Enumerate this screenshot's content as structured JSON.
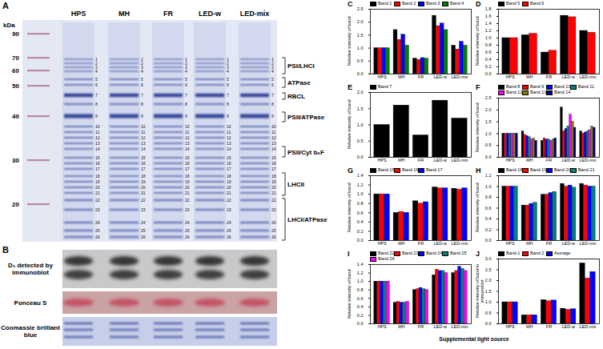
{
  "gel_figure": {
    "panel": "A",
    "unit": "kDa",
    "lanes": [
      "HPS",
      "MH",
      "FR",
      "LED-w",
      "LED-mix"
    ],
    "markers": [
      90,
      70,
      60,
      50,
      40,
      30,
      20
    ],
    "band_numbers": [
      "1",
      "2",
      "3",
      "4",
      "5",
      "6",
      "7",
      "8",
      "9",
      "10",
      "11",
      "12",
      "13",
      "14",
      "15",
      "16",
      "17",
      "18",
      "19",
      "20",
      "21",
      "22",
      "23",
      "24",
      "25",
      "26"
    ],
    "groups": [
      "PSI/LHCI",
      "ATPase",
      "RBCL",
      "PSII/ATPase",
      "PSII/Cyt b₆F",
      "LHCII",
      "LHCI/ATPase"
    ]
  },
  "blot_figure": {
    "panel": "B",
    "rows": [
      "D₁ detected by immunoblot",
      "Ponceau S",
      "Coomassie brilliant blue"
    ]
  },
  "chart_data": [
    {
      "type": "bar",
      "title": "C",
      "categories": [
        "HPS",
        "MH",
        "FR",
        "LED-w",
        "LED-mix"
      ],
      "y_label": "Relative intensity of band",
      "ylim": [
        0,
        2.5
      ],
      "yticks": [
        {
          "value": 0,
          "label": "0.0"
        },
        0.5,
        {
          "value": 1,
          "label": "1.0"
        },
        1.5,
        {
          "value": 2,
          "label": "2.0"
        },
        2.5
      ],
      "series": [
        {
          "name": "Band 1",
          "color": "#000000",
          "values": [
            1.0,
            1.7,
            0.6,
            2.25,
            1.1
          ]
        },
        {
          "name": "Band 2",
          "color": "#ff0000",
          "values": [
            1.0,
            1.32,
            0.55,
            1.85,
            0.95
          ]
        },
        {
          "name": "Band 3",
          "color": "#0000ff",
          "values": [
            1.0,
            1.52,
            0.62,
            1.95,
            1.25
          ]
        },
        {
          "name": "Band 4",
          "color": "#008000",
          "values": [
            1.0,
            1.1,
            0.6,
            1.7,
            1.1
          ]
        }
      ]
    },
    {
      "type": "bar",
      "title": "D",
      "categories": [
        "HPS",
        "MH",
        "FR",
        "LED-w",
        "LED-mix"
      ],
      "y_label": "Relative intensity of band",
      "ylim": [
        0,
        1.8
      ],
      "yticks": [
        {
          "value": 0,
          "label": "0.0"
        },
        0.2,
        0.4,
        0.6,
        0.8,
        {
          "value": 1,
          "label": "1.0"
        },
        1.2,
        1.4,
        1.6,
        1.8
      ],
      "series": [
        {
          "name": "Band 5",
          "color": "#000000",
          "values": [
            1.0,
            1.08,
            0.6,
            1.62,
            1.2
          ]
        },
        {
          "name": "Band 6",
          "color": "#ff0000",
          "values": [
            1.0,
            1.12,
            0.65,
            1.58,
            1.15
          ]
        }
      ]
    },
    {
      "type": "bar",
      "title": "E",
      "categories": [
        "HPS",
        "MH",
        "FR",
        "LED-w",
        "LED-mix"
      ],
      "y_label": "Relative intensity of band",
      "ylim": [
        0,
        2
      ],
      "yticks": [
        {
          "value": 0,
          "label": "0.0"
        },
        0.5,
        {
          "value": 1,
          "label": "1.0"
        },
        1.5,
        {
          "value": 2,
          "label": "2.0"
        }
      ],
      "series": [
        {
          "name": "Band 7",
          "color": "#000000",
          "values": [
            1.0,
            1.6,
            0.68,
            1.75,
            1.2
          ]
        }
      ]
    },
    {
      "type": "bar",
      "title": "F",
      "categories": [
        "HPS",
        "MH",
        "FR",
        "LED-w",
        "LED-mix"
      ],
      "y_label": "Relative intensity of band",
      "ylim": [
        0,
        2.5
      ],
      "yticks": [
        {
          "value": 0,
          "label": "0.0"
        },
        0.5,
        {
          "value": 1,
          "label": "1.0"
        },
        1.5,
        {
          "value": 2,
          "label": "2.0"
        },
        2.5
      ],
      "series": [
        {
          "name": "Band 8",
          "color": "#000000",
          "values": [
            1.0,
            1.1,
            0.7,
            2.1,
            1.1
          ]
        },
        {
          "name": "Band 9",
          "color": "#ff0000",
          "values": [
            1.0,
            0.95,
            0.8,
            1.1,
            1.0
          ]
        },
        {
          "name": "Band 10",
          "color": "#0000ff",
          "values": [
            1.0,
            0.9,
            0.75,
            1.2,
            1.05
          ]
        },
        {
          "name": "Band 11",
          "color": "#008080",
          "values": [
            1.0,
            0.85,
            0.75,
            1.3,
            1.1
          ]
        },
        {
          "name": "Band 12",
          "color": "#ff00ff",
          "values": [
            1.0,
            0.75,
            0.7,
            1.8,
            1.15
          ]
        },
        {
          "name": "Band 13",
          "color": "#808000",
          "values": [
            1.0,
            0.8,
            0.75,
            1.5,
            1.3
          ]
        },
        {
          "name": "Band 14",
          "color": "#000080",
          "values": [
            1.0,
            0.7,
            0.8,
            1.25,
            1.25
          ]
        }
      ]
    },
    {
      "type": "bar",
      "title": "G",
      "categories": [
        "HPS",
        "MH",
        "FR",
        "LED-w",
        "LED-mix"
      ],
      "y_label": "Relative intensity of band",
      "ylim": [
        0,
        1.4
      ],
      "yticks": [
        {
          "value": 0,
          "label": "0.0"
        },
        0.2,
        0.4,
        0.6,
        0.8,
        {
          "value": 1,
          "label": "1.0"
        },
        1.2,
        1.4
      ],
      "series": [
        {
          "name": "Band 15",
          "color": "#000000",
          "values": [
            1.0,
            0.6,
            0.85,
            1.15,
            1.12
          ]
        },
        {
          "name": "Band 16",
          "color": "#ff0000",
          "values": [
            1.0,
            0.62,
            0.8,
            1.13,
            1.1
          ]
        },
        {
          "name": "Band 17",
          "color": "#0000ff",
          "values": [
            1.0,
            0.6,
            0.83,
            1.13,
            1.13
          ]
        }
      ]
    },
    {
      "type": "bar",
      "title": "H",
      "categories": [
        "HPS",
        "MH",
        "FR",
        "LED-w",
        "LED-mix"
      ],
      "y_label": "Relative intensity of band",
      "ylim": [
        0,
        1.2
      ],
      "yticks": [
        {
          "value": 0,
          "label": "0.0"
        },
        0.2,
        0.4,
        0.6,
        0.8,
        {
          "value": 1,
          "label": "1.0"
        },
        1.2
      ],
      "series": [
        {
          "name": "Band 18",
          "color": "#000000",
          "values": [
            1.0,
            0.65,
            0.85,
            1.05,
            1.05
          ]
        },
        {
          "name": "Band 19",
          "color": "#ff0000",
          "values": [
            1.0,
            0.65,
            0.85,
            1.0,
            1.02
          ]
        },
        {
          "name": "Band 20",
          "color": "#0000ff",
          "values": [
            1.0,
            0.68,
            0.88,
            1.02,
            1.0
          ]
        },
        {
          "name": "Band 21",
          "color": "#008080",
          "values": [
            1.0,
            0.7,
            0.9,
            0.98,
            1.0
          ]
        }
      ]
    },
    {
      "type": "bar",
      "title": "I",
      "categories": [
        "HPS",
        "MH",
        "FR",
        "LED-w",
        "LED-mix"
      ],
      "y_label": "Relative intensity of band",
      "ylim": [
        0,
        1.4
      ],
      "yticks": [
        {
          "value": 0,
          "label": "0.0"
        },
        0.2,
        0.4,
        0.6,
        0.8,
        {
          "value": 1,
          "label": "1.0"
        },
        1.2,
        1.4
      ],
      "series": [
        {
          "name": "Band 22",
          "color": "#000000",
          "values": [
            1.0,
            0.5,
            0.8,
            1.15,
            1.2
          ]
        },
        {
          "name": "Band 23",
          "color": "#ff0000",
          "values": [
            1.0,
            0.52,
            0.82,
            1.28,
            1.25
          ]
        },
        {
          "name": "Band 24",
          "color": "#0000ff",
          "values": [
            1.0,
            0.5,
            0.85,
            1.25,
            1.35
          ]
        },
        {
          "name": "Band 25",
          "color": "#008080",
          "values": [
            1.0,
            0.5,
            0.82,
            1.25,
            1.3
          ]
        },
        {
          "name": "Band 26",
          "color": "#ff00ff",
          "values": [
            1.0,
            0.52,
            0.8,
            1.2,
            1.25
          ]
        }
      ]
    },
    {
      "type": "bar",
      "title": "J",
      "categories": [
        "HPS",
        "MH",
        "FR",
        "LED-w",
        "LED-mix"
      ],
      "y_label": "Relative intensity of band in immunoblot",
      "x_label": "Supplemental light source",
      "ylim": [
        0,
        3
      ],
      "yticks": [
        {
          "value": 0,
          "label": "0.0"
        },
        0.5,
        {
          "value": 1,
          "label": "1.0"
        },
        1.5,
        {
          "value": 2,
          "label": "2.0"
        },
        2.5,
        {
          "value": 3,
          "label": "3.0"
        }
      ],
      "series": [
        {
          "name": "Band 1",
          "color": "#000000",
          "values": [
            1.0,
            0.4,
            1.1,
            0.7,
            2.8
          ]
        },
        {
          "name": "Band 2",
          "color": "#ff0000",
          "values": [
            1.0,
            0.4,
            1.05,
            0.65,
            2.1
          ]
        },
        {
          "name": "Average",
          "color": "#0000ff",
          "values": [
            1.0,
            0.4,
            1.08,
            0.68,
            2.4
          ]
        }
      ]
    }
  ]
}
